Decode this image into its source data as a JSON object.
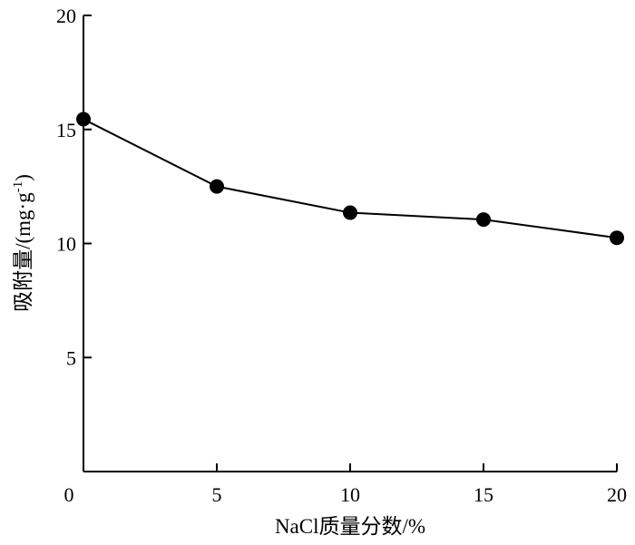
{
  "chart_data": {
    "type": "line",
    "title": "",
    "xlabel": "NaCl质量分数/%",
    "ylabel_main": "吸附量/(mg·g",
    "ylabel_sup": "-1",
    "ylabel_close": ")",
    "xlim": [
      0,
      20
    ],
    "ylim": [
      0,
      20
    ],
    "xticks": [
      0,
      5,
      10,
      15,
      20
    ],
    "yticks": [
      5,
      10,
      15,
      20
    ],
    "grid": false,
    "series": [
      {
        "x": [
          0,
          5,
          10,
          15,
          20
        ],
        "y": [
          15.45,
          12.5,
          11.35,
          11.05,
          10.25
        ]
      }
    ],
    "colors": {
      "line": "#000000",
      "marker": "#000000"
    }
  }
}
